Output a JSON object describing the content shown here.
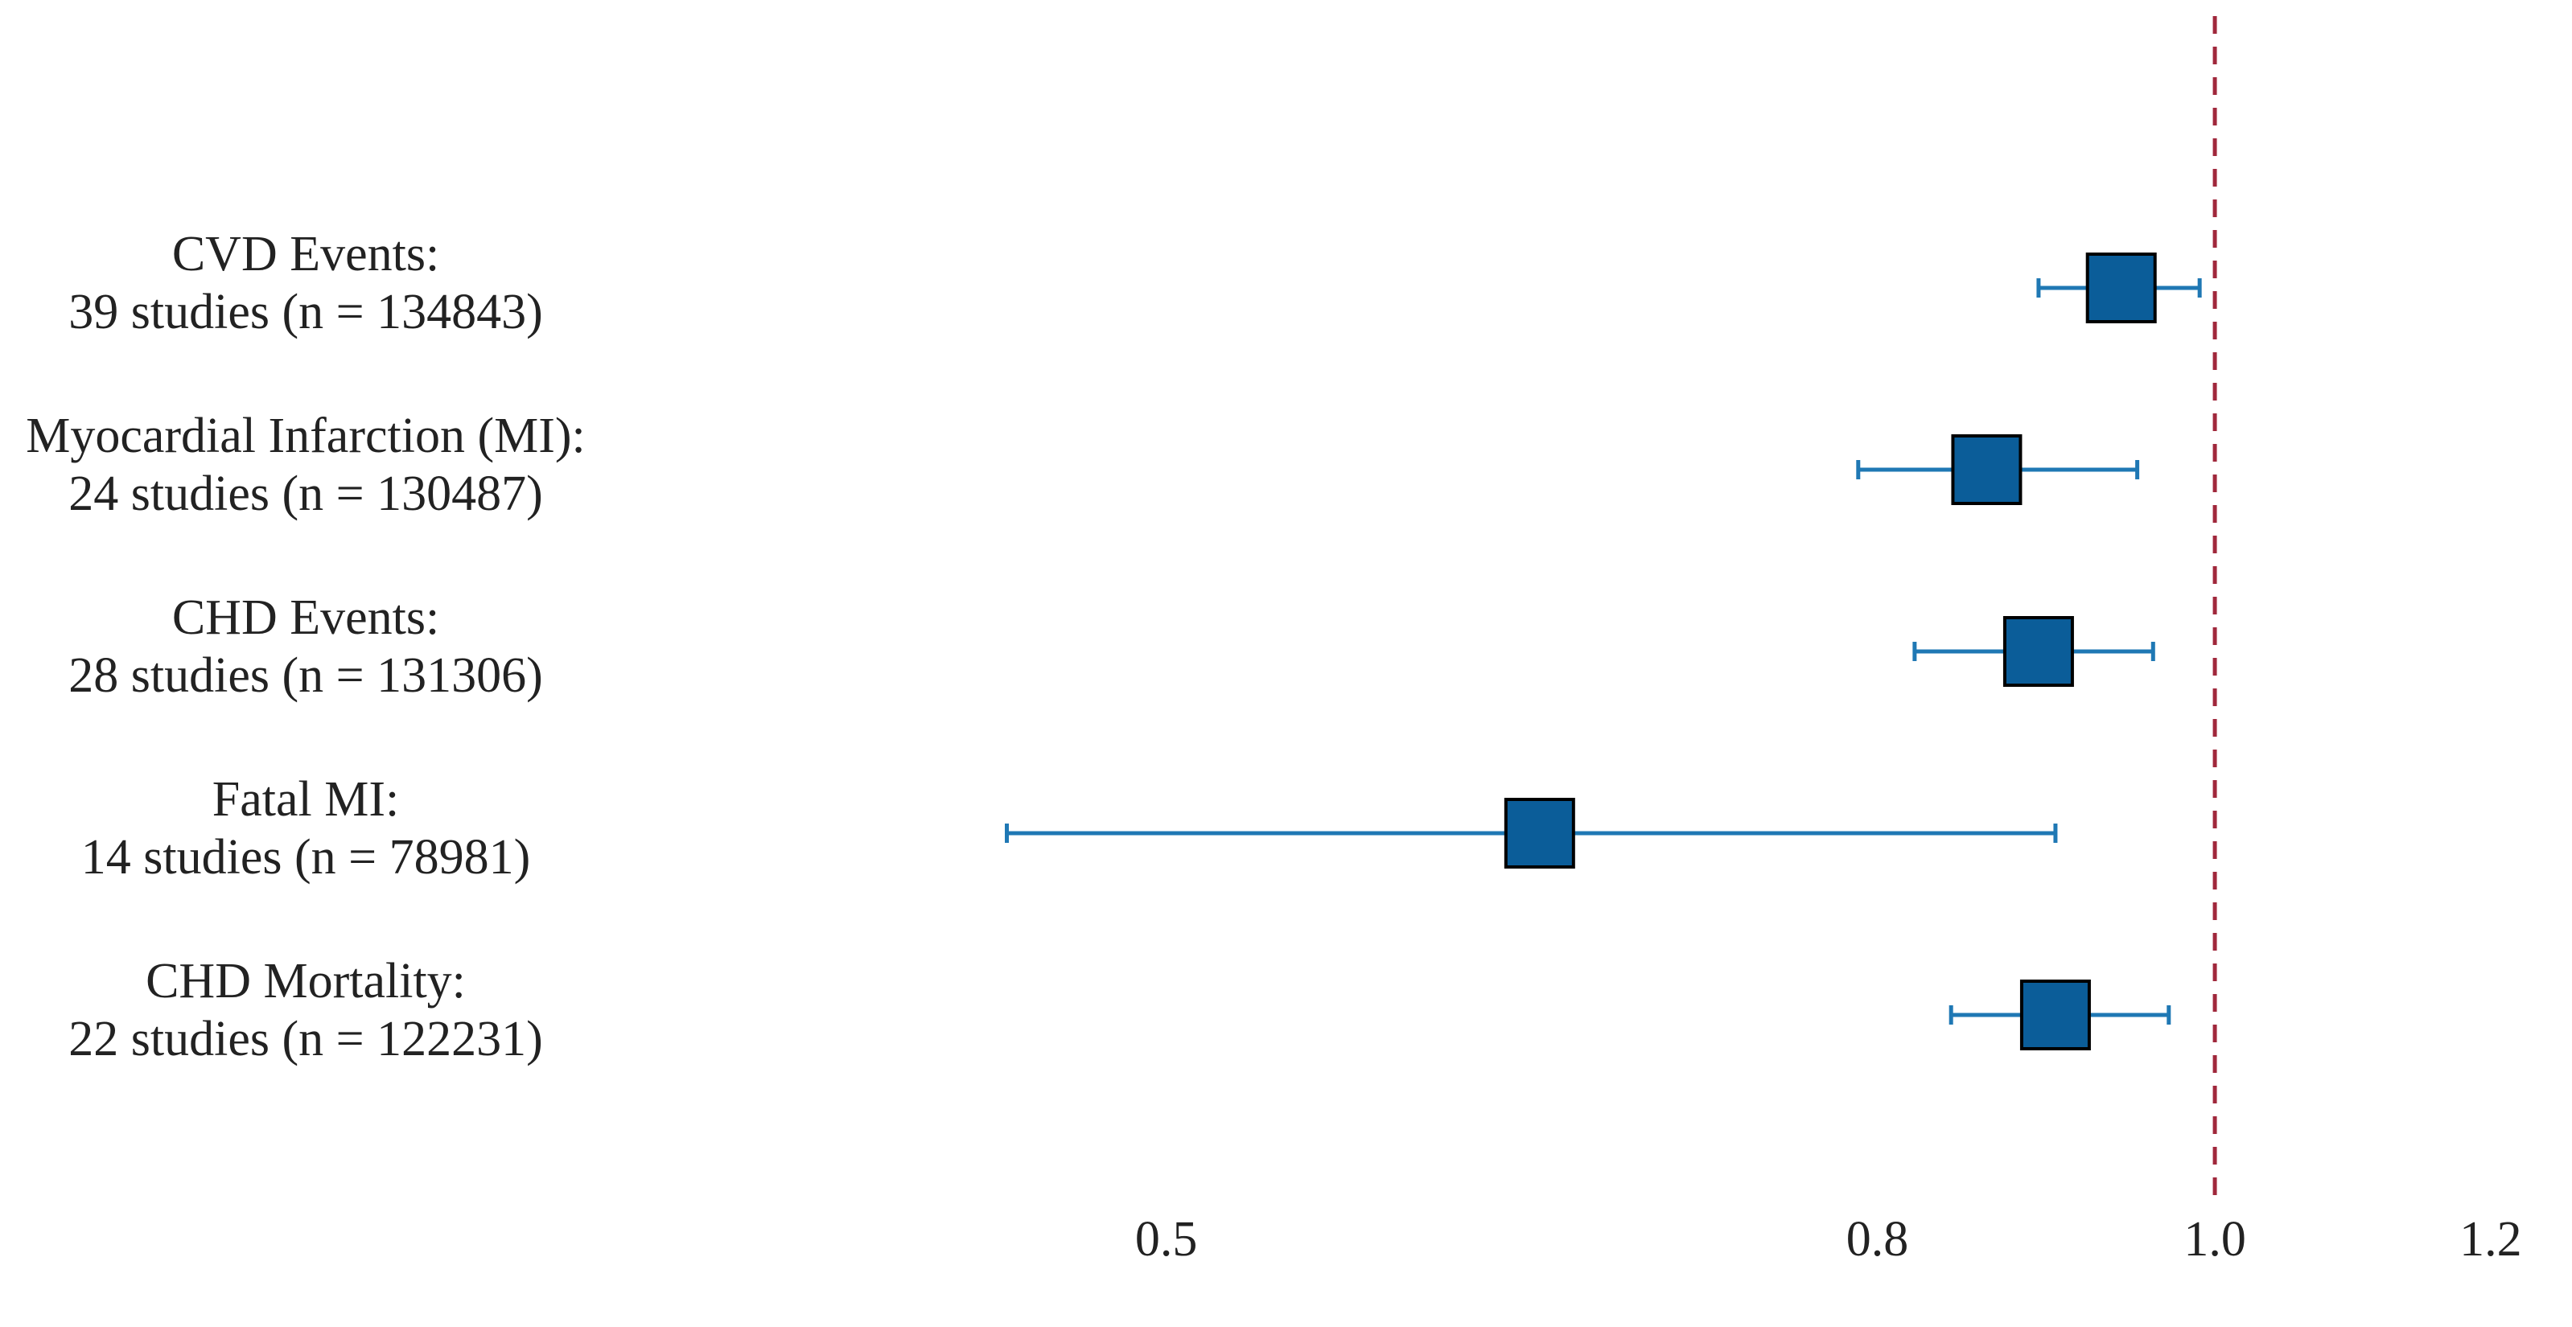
{
  "chart_data": {
    "type": "forest",
    "categories": [
      "CVD Events:",
      "Myocardial Infarction (MI):",
      "CHD Events:",
      "Fatal MI:",
      "CHD Mortality:"
    ],
    "details": [
      "39 studies  (n = 134843)",
      "24 studies  (n = 130487)",
      "28 studies  (n = 131306)",
      "14 studies  (n = 78981)",
      "22 studies  (n = 122231)"
    ],
    "values": [
      0.94,
      0.86,
      0.89,
      0.64,
      0.9
    ],
    "lower": [
      0.89,
      0.79,
      0.82,
      0.45,
      0.84
    ],
    "upper": [
      0.99,
      0.95,
      0.96,
      0.9,
      0.97
    ],
    "color": "#0b5d99",
    "ci_color": "#1f78b4",
    "reference": 1,
    "reference_color": "#a0283c",
    "log_x": true,
    "xlim": [
      0.4,
      1.22
    ],
    "xticks": [
      0.5,
      0.8,
      {
        "value": 1,
        "label": "1.0"
      },
      1.2
    ]
  }
}
